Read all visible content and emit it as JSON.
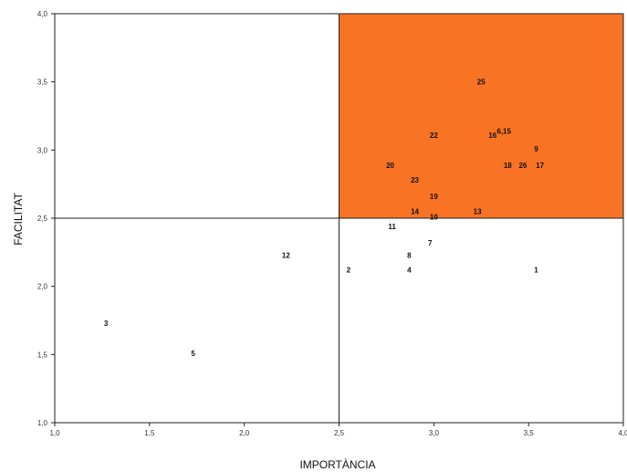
{
  "chart_data": {
    "type": "scatter",
    "xlabel": "IMPORTÀNCIA",
    "ylabel": "FACILITAT",
    "xlim": [
      1.0,
      4.0
    ],
    "ylim": [
      1.0,
      4.0
    ],
    "x_ticks": [
      "1,0",
      "1,5",
      "2,0",
      "2,5",
      "3,0",
      "3,5",
      "4,0"
    ],
    "y_ticks": [
      "1,0",
      "1,5",
      "2,0",
      "2,5",
      "3,0",
      "3,5",
      "4,0"
    ],
    "quadrant_divider": {
      "x": 2.5,
      "y": 2.5
    },
    "highlight_quadrant": {
      "x": [
        2.5,
        4.0
      ],
      "y": [
        2.5,
        4.0
      ],
      "color": "#f97324"
    },
    "grid": false,
    "points": [
      {
        "label": "25",
        "x": 3.25,
        "y": 3.5
      },
      {
        "label": "6,15",
        "x": 3.37,
        "y": 3.14
      },
      {
        "label": "16",
        "x": 3.31,
        "y": 3.11
      },
      {
        "label": "22",
        "x": 3.0,
        "y": 3.11
      },
      {
        "label": "9",
        "x": 3.54,
        "y": 3.01
      },
      {
        "label": "20",
        "x": 2.77,
        "y": 2.89
      },
      {
        "label": "18",
        "x": 3.39,
        "y": 2.89
      },
      {
        "label": "26",
        "x": 3.47,
        "y": 2.89
      },
      {
        "label": "17",
        "x": 3.56,
        "y": 2.89
      },
      {
        "label": "23",
        "x": 2.9,
        "y": 2.78
      },
      {
        "label": "19",
        "x": 3.0,
        "y": 2.66
      },
      {
        "label": "14",
        "x": 2.9,
        "y": 2.55
      },
      {
        "label": "10",
        "x": 3.0,
        "y": 2.51
      },
      {
        "label": "13",
        "x": 3.23,
        "y": 2.55
      },
      {
        "label": "11",
        "x": 2.78,
        "y": 2.44
      },
      {
        "label": "7",
        "x": 2.98,
        "y": 2.32
      },
      {
        "label": "8",
        "x": 2.87,
        "y": 2.23
      },
      {
        "label": "12",
        "x": 2.22,
        "y": 2.23
      },
      {
        "label": "2",
        "x": 2.55,
        "y": 2.12
      },
      {
        "label": "4",
        "x": 2.87,
        "y": 2.12
      },
      {
        "label": "1",
        "x": 3.54,
        "y": 2.12
      },
      {
        "label": "3",
        "x": 1.27,
        "y": 1.73
      },
      {
        "label": "5",
        "x": 1.73,
        "y": 1.51
      }
    ]
  }
}
